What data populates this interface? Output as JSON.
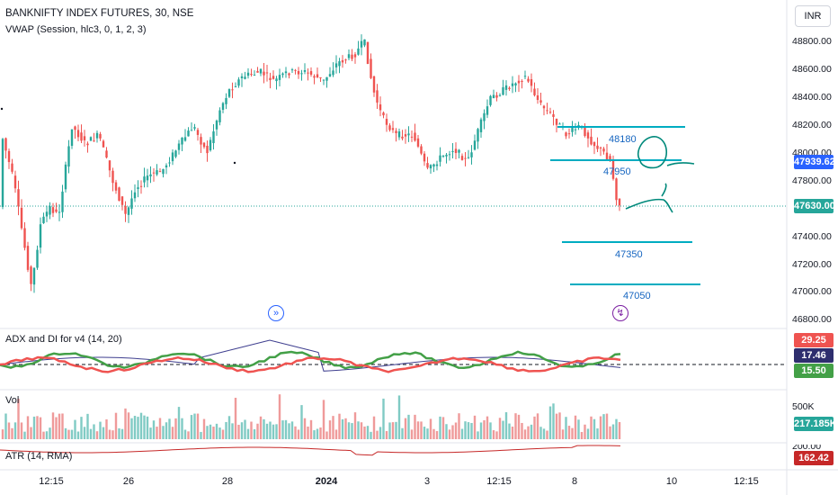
{
  "title": "BANKNIFTY INDEX FUTURES, 30, NSE",
  "vwap_label": "VWAP (Session, hlc3, 0, 1, 2, 3)",
  "currency": "INR",
  "price_axis": [
    "48800.00",
    "48600.00",
    "48400.00",
    "48200.00",
    "48000.00",
    "47800.00",
    "47400.00",
    "47200.00",
    "47000.00",
    "46800.00"
  ],
  "price_tags": {
    "vwap": "47939.62",
    "last": "47630.00"
  },
  "levels": {
    "a": "48180",
    "b": "47950",
    "c": "47350",
    "d": "47050"
  },
  "adx": {
    "label": "ADX and DI for v4 (14, 20)",
    "v1": "29.25",
    "v2": "17.46",
    "v3": "15.50"
  },
  "vol": {
    "label": "Vol",
    "axis": "500K",
    "value": "217.185K"
  },
  "atr": {
    "label": "ATR (14, RMA)",
    "axis": "200.00",
    "value": "162.42"
  },
  "time_axis": [
    "12:15",
    "26",
    "28",
    "2024",
    "3",
    "12:15",
    "8",
    "10",
    "12:15"
  ],
  "icons": {
    "replay": "replay-icon",
    "lightning": "lightning-icon"
  },
  "colors": {
    "up": "#26a69a",
    "down": "#ef5350",
    "accent": "#2962ff",
    "line": "#00acc1"
  }
}
